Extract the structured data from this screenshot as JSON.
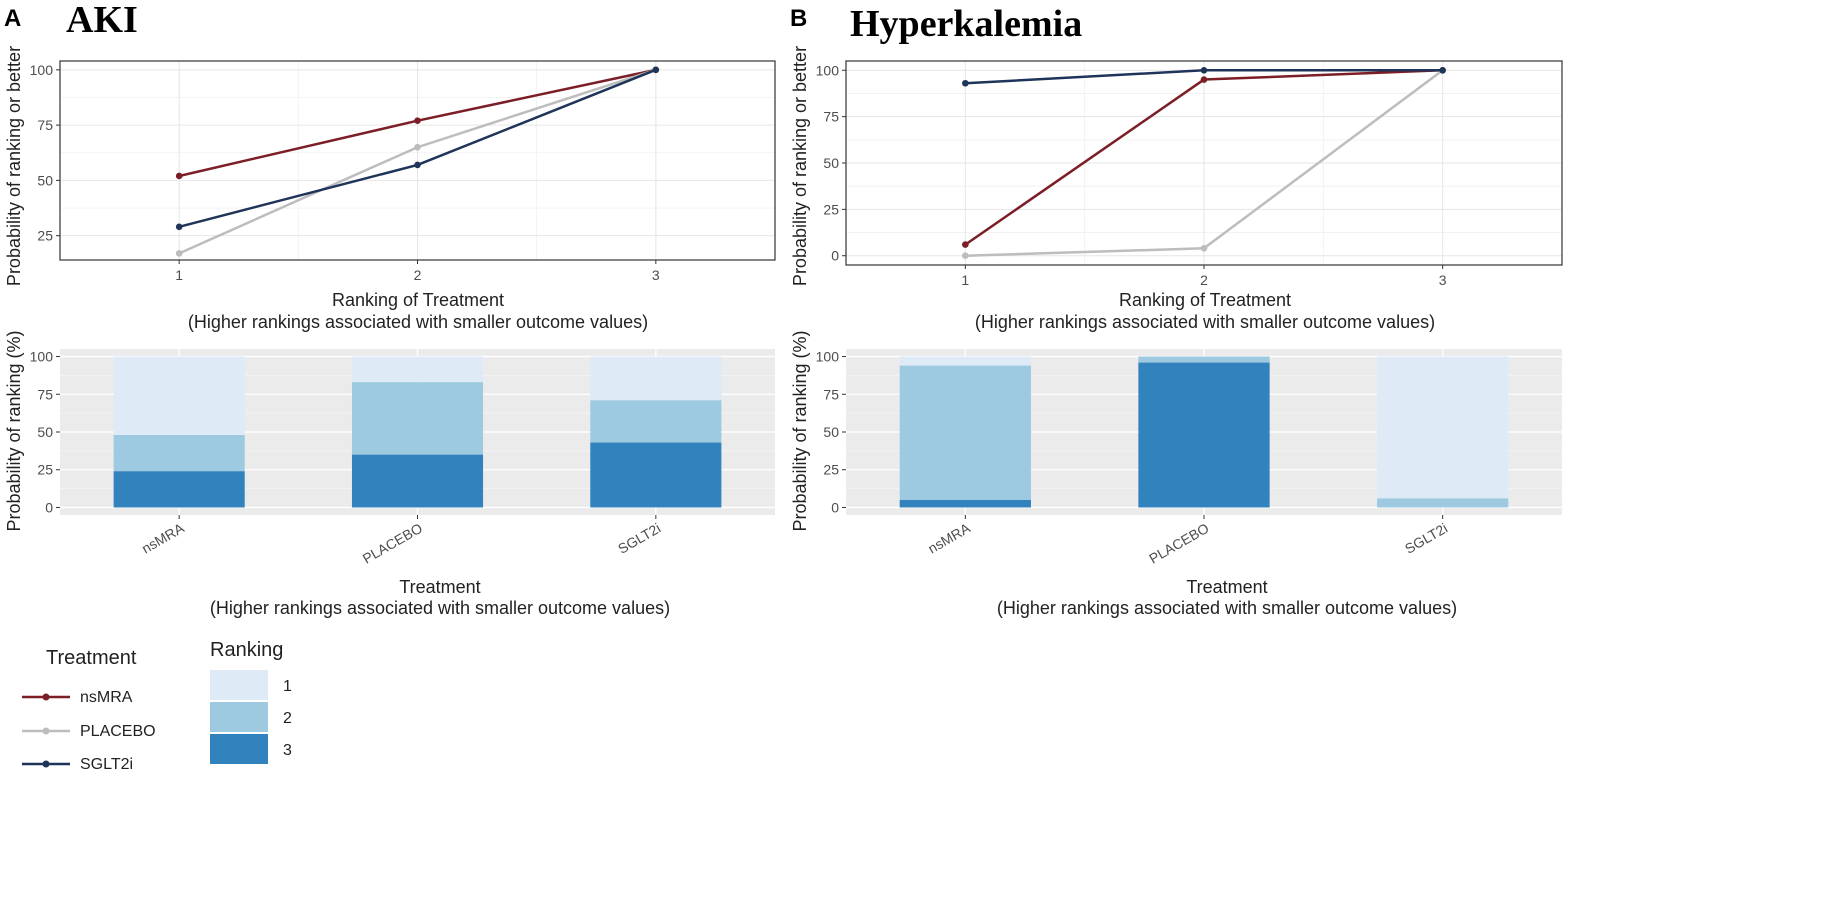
{
  "panels": [
    {
      "letter": "A",
      "title": "AKI",
      "line_ylabel": "Probability of ranking or better",
      "line_xlabel": "Ranking of Treatment",
      "line_xsub": "(Higher rankings associated with smaller outcome values)",
      "bar_ylabel": "Probability of ranking (%)",
      "bar_xlabel": "Treatment",
      "bar_xsub": "(Higher rankings associated with smaller outcome values)"
    },
    {
      "letter": "B",
      "title": "Hyperkalemia",
      "line_ylabel": "Probability of ranking or better",
      "line_xlabel": "Ranking of Treatment",
      "line_xsub": "(Higher rankings associated with smaller outcome values)",
      "bar_ylabel": "Probability of ranking (%)",
      "bar_xlabel": "Treatment",
      "bar_xsub": "(Higher rankings associated with smaller outcome values)"
    }
  ],
  "legend": {
    "treatment_title": "Treatment",
    "ranking_title": "Ranking",
    "treatments": [
      {
        "name": "nsMRA",
        "color": "#7b1e25"
      },
      {
        "name": "PLACEBO",
        "color": "#bdbdbd"
      },
      {
        "name": "SGLT2i",
        "color": "#1f3459"
      }
    ],
    "rankings": [
      {
        "label": "1",
        "color": "#deebf7"
      },
      {
        "label": "2",
        "color": "#9ecae1"
      },
      {
        "label": "3",
        "color": "#3182bd"
      }
    ]
  },
  "chart_data": [
    {
      "type": "line",
      "panel": "A",
      "title": "AKI",
      "x": [
        1,
        2,
        3
      ],
      "xlim": [
        0.5,
        3.5
      ],
      "ylim": [
        14,
        104
      ],
      "yticks": [
        25,
        50,
        75,
        100
      ],
      "xlabel": "Ranking of Treatment",
      "ylabel": "Probability of ranking or better",
      "series": [
        {
          "name": "nsMRA",
          "values": [
            52,
            77,
            100
          ]
        },
        {
          "name": "PLACEBO",
          "values": [
            17,
            65,
            100
          ]
        },
        {
          "name": "SGLT2i",
          "values": [
            29,
            57,
            100
          ]
        }
      ]
    },
    {
      "type": "bar",
      "panel": "A",
      "stacked": true,
      "categories": [
        "nsMRA",
        "PLACEBO",
        "SGLT2i"
      ],
      "ylim": [
        -5,
        105
      ],
      "yticks": [
        0,
        25,
        50,
        75,
        100
      ],
      "xlabel": "Treatment",
      "ylabel": "Probability of ranking (%)",
      "series": [
        {
          "name": "1",
          "values": [
            52,
            17,
            29
          ]
        },
        {
          "name": "2",
          "values": [
            24,
            48,
            28
          ]
        },
        {
          "name": "3",
          "values": [
            24,
            35,
            43
          ]
        }
      ]
    },
    {
      "type": "line",
      "panel": "B",
      "title": "Hyperkalemia",
      "x": [
        1,
        2,
        3
      ],
      "xlim": [
        0.5,
        3.5
      ],
      "ylim": [
        -5,
        105
      ],
      "yticks": [
        0,
        25,
        50,
        75,
        100
      ],
      "xlabel": "Ranking of Treatment",
      "ylabel": "Probability of ranking or better",
      "series": [
        {
          "name": "nsMRA",
          "values": [
            6,
            95,
            100
          ]
        },
        {
          "name": "PLACEBO",
          "values": [
            0,
            4,
            100
          ]
        },
        {
          "name": "SGLT2i",
          "values": [
            93,
            100,
            100
          ]
        }
      ]
    },
    {
      "type": "bar",
      "panel": "B",
      "stacked": true,
      "categories": [
        "nsMRA",
        "PLACEBO",
        "SGLT2i"
      ],
      "ylim": [
        -5,
        105
      ],
      "yticks": [
        0,
        25,
        50,
        75,
        100
      ],
      "xlabel": "Treatment",
      "ylabel": "Probability of ranking (%)",
      "series": [
        {
          "name": "1",
          "values": [
            6,
            0,
            94
          ]
        },
        {
          "name": "2",
          "values": [
            89,
            4,
            6
          ]
        },
        {
          "name": "3",
          "values": [
            5,
            96,
            0
          ]
        }
      ]
    }
  ]
}
